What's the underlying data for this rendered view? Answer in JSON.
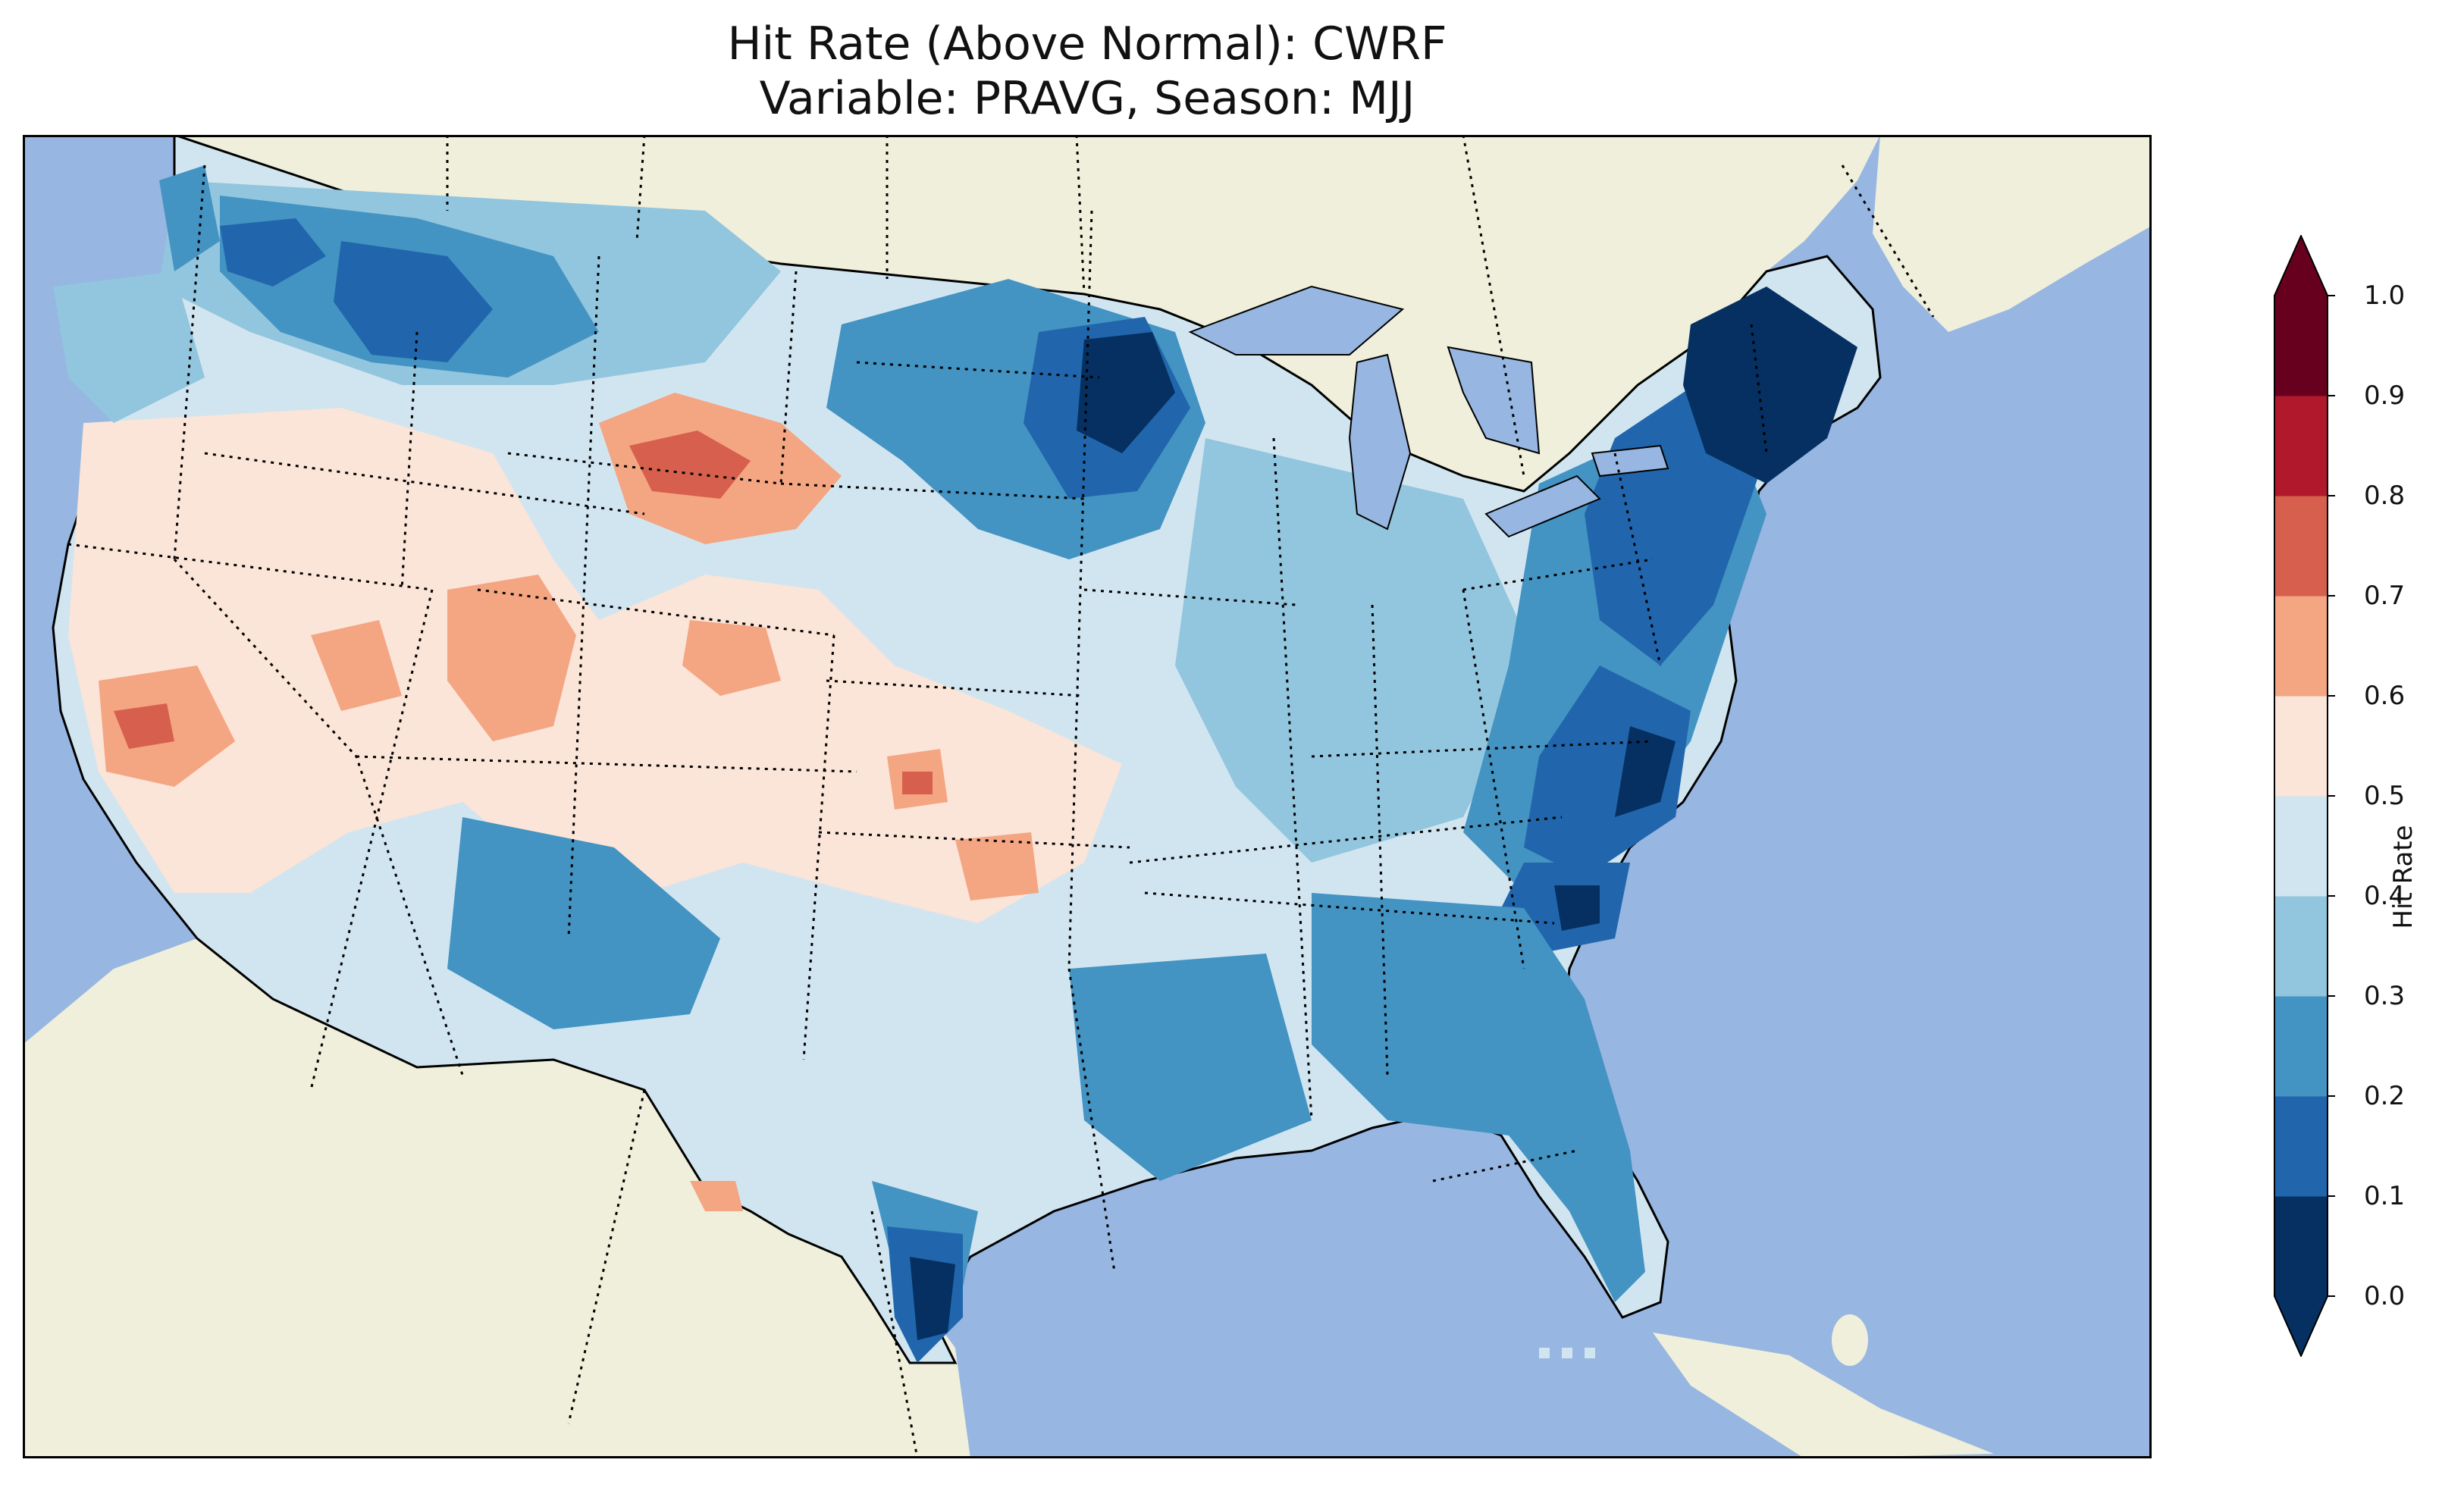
{
  "title_line1": "Hit Rate (Above Normal): CWRF",
  "title_line2": "Variable: PRAVG, Season: MJJ",
  "colorbar": {
    "label": "Hit Rate",
    "ticks": [
      "0.0",
      "0.1",
      "0.2",
      "0.3",
      "0.4",
      "0.5",
      "0.6",
      "0.7",
      "0.8",
      "0.9",
      "1.0"
    ],
    "bins": [
      {
        "from": 0.0,
        "to": 0.1,
        "color": "#053061"
      },
      {
        "from": 0.1,
        "to": 0.2,
        "color": "#2166ac"
      },
      {
        "from": 0.2,
        "to": 0.3,
        "color": "#4393c3"
      },
      {
        "from": 0.3,
        "to": 0.4,
        "color": "#92c5de"
      },
      {
        "from": 0.4,
        "to": 0.5,
        "color": "#d1e5f0"
      },
      {
        "from": 0.5,
        "to": 0.6,
        "color": "#fbe4d8"
      },
      {
        "from": 0.6,
        "to": 0.7,
        "color": "#f4a582"
      },
      {
        "from": 0.7,
        "to": 0.8,
        "color": "#d6604d"
      },
      {
        "from": 0.8,
        "to": 0.9,
        "color": "#b2182b"
      },
      {
        "from": 0.9,
        "to": 1.0,
        "color": "#67001f"
      }
    ],
    "extend": "both"
  },
  "map": {
    "ocean_color": "#97b6e1",
    "land_color": "#efefdb",
    "region": "Contiguous United States"
  }
}
